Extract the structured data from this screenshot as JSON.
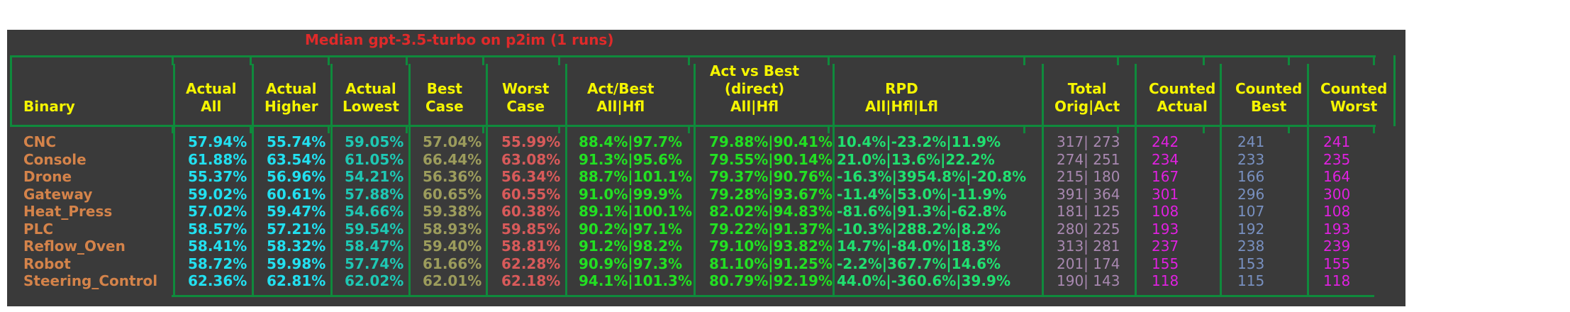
{
  "title": "Median gpt-3.5-turbo on p2im (1 runs)",
  "colors": {
    "background": "#3a3a3a",
    "rules": "#0f8a3c",
    "title": "#e02a2a",
    "header": "#f5f500",
    "binary": "#d4834a",
    "actual_all": "#22e0f0",
    "actual_higher": "#22e0f0",
    "actual_lowest": "#1ec8b4",
    "best_case": "#9c9c5c",
    "worst_case": "#d85a5a",
    "act_best": "#22e022",
    "act_vs_best": "#22e022",
    "rpd": "#20e070",
    "total": "#a888b0",
    "counted_actual": "#e020e0",
    "counted_best": "#7890c0",
    "counted_worst": "#e020e0"
  },
  "headers": [
    {
      "key": "binary",
      "label": "\nBinary"
    },
    {
      "key": "actual_all",
      "label": "Actual\nAll"
    },
    {
      "key": "actual_higher",
      "label": "Actual\nHigher"
    },
    {
      "key": "actual_lowest",
      "label": "Actual\nLowest"
    },
    {
      "key": "best_case",
      "label": "Best\nCase"
    },
    {
      "key": "worst_case",
      "label": "Worst\nCase"
    },
    {
      "key": "act_best",
      "label": "Act/Best\nAll|Hfl"
    },
    {
      "key": "act_vs_best",
      "label": "Act vs Best\n(direct)\nAll|Hfl"
    },
    {
      "key": "rpd",
      "label": "RPD\nAll|Hfl|Lfl"
    },
    {
      "key": "total",
      "label": "Total\nOrig|Act"
    },
    {
      "key": "counted_actual",
      "label": "Counted\nActual"
    },
    {
      "key": "counted_best",
      "label": "Counted\nBest"
    },
    {
      "key": "counted_worst",
      "label": "Counted\nWorst"
    }
  ],
  "rows": [
    {
      "binary": "CNC",
      "actual_all": "57.94%",
      "actual_higher": "55.74%",
      "actual_lowest": "59.05%",
      "best_case": "57.04%",
      "worst_case": "55.99%",
      "act_best": "88.4%|97.7%",
      "act_vs_best": "79.88%|90.41%",
      "rpd": "10.4%|-23.2%|11.9%",
      "total": "317| 273",
      "counted_actual": "242",
      "counted_best": "241",
      "counted_worst": "241"
    },
    {
      "binary": "Console",
      "actual_all": "61.88%",
      "actual_higher": "63.54%",
      "actual_lowest": "61.05%",
      "best_case": "66.44%",
      "worst_case": "63.08%",
      "act_best": "91.3%|95.6%",
      "act_vs_best": "79.55%|90.14%",
      "rpd": "21.0%|13.6%|22.2%",
      "total": "274| 251",
      "counted_actual": "234",
      "counted_best": "233",
      "counted_worst": "235"
    },
    {
      "binary": "Drone",
      "actual_all": "55.37%",
      "actual_higher": "56.96%",
      "actual_lowest": "54.21%",
      "best_case": "56.36%",
      "worst_case": "56.34%",
      "act_best": "88.7%|101.1%",
      "act_vs_best": "79.37%|90.76%",
      "rpd": "-16.3%|3954.8%|-20.8%",
      "total": "215| 180",
      "counted_actual": "167",
      "counted_best": "166",
      "counted_worst": "164"
    },
    {
      "binary": "Gateway",
      "actual_all": "59.02%",
      "actual_higher": "60.61%",
      "actual_lowest": "57.88%",
      "best_case": "60.65%",
      "worst_case": "60.55%",
      "act_best": "91.0%|99.9%",
      "act_vs_best": "79.28%|93.67%",
      "rpd": "-11.4%|53.0%|-11.9%",
      "total": "391| 364",
      "counted_actual": "301",
      "counted_best": "296",
      "counted_worst": "300"
    },
    {
      "binary": "Heat_Press",
      "actual_all": "57.02%",
      "actual_higher": "59.47%",
      "actual_lowest": "54.66%",
      "best_case": "59.38%",
      "worst_case": "60.38%",
      "act_best": "89.1%|100.1%",
      "act_vs_best": "82.02%|94.83%",
      "rpd": "-81.6%|91.3%|-62.8%",
      "total": "181| 125",
      "counted_actual": "108",
      "counted_best": "107",
      "counted_worst": "108"
    },
    {
      "binary": "PLC",
      "actual_all": "58.57%",
      "actual_higher": "57.21%",
      "actual_lowest": "59.54%",
      "best_case": "58.93%",
      "worst_case": "59.85%",
      "act_best": "90.2%|97.1%",
      "act_vs_best": "79.22%|91.37%",
      "rpd": "-10.3%|288.2%|8.2%",
      "total": "280| 225",
      "counted_actual": "193",
      "counted_best": "192",
      "counted_worst": "193"
    },
    {
      "binary": "Reflow_Oven",
      "actual_all": "58.41%",
      "actual_higher": "58.32%",
      "actual_lowest": "58.47%",
      "best_case": "59.40%",
      "worst_case": "58.81%",
      "act_best": "91.2%|98.2%",
      "act_vs_best": "79.10%|93.82%",
      "rpd": "14.7%|-84.0%|18.3%",
      "total": "313| 281",
      "counted_actual": "237",
      "counted_best": "238",
      "counted_worst": "239"
    },
    {
      "binary": "Robot",
      "actual_all": "58.72%",
      "actual_higher": "59.98%",
      "actual_lowest": "57.74%",
      "best_case": "61.66%",
      "worst_case": "62.28%",
      "act_best": "90.9%|97.3%",
      "act_vs_best": "81.10%|91.25%",
      "rpd": "-2.2%|367.7%|14.6%",
      "total": "201| 174",
      "counted_actual": "155",
      "counted_best": "153",
      "counted_worst": "155"
    },
    {
      "binary": "Steering_Control",
      "actual_all": "62.36%",
      "actual_higher": "62.81%",
      "actual_lowest": "62.02%",
      "best_case": "62.01%",
      "worst_case": "62.18%",
      "act_best": "94.1%|101.3%",
      "act_vs_best": "80.79%|92.19%",
      "rpd": "44.0%|-360.6%|39.9%",
      "total": "190| 143",
      "counted_actual": "118",
      "counted_best": "115",
      "counted_worst": "118"
    }
  ]
}
